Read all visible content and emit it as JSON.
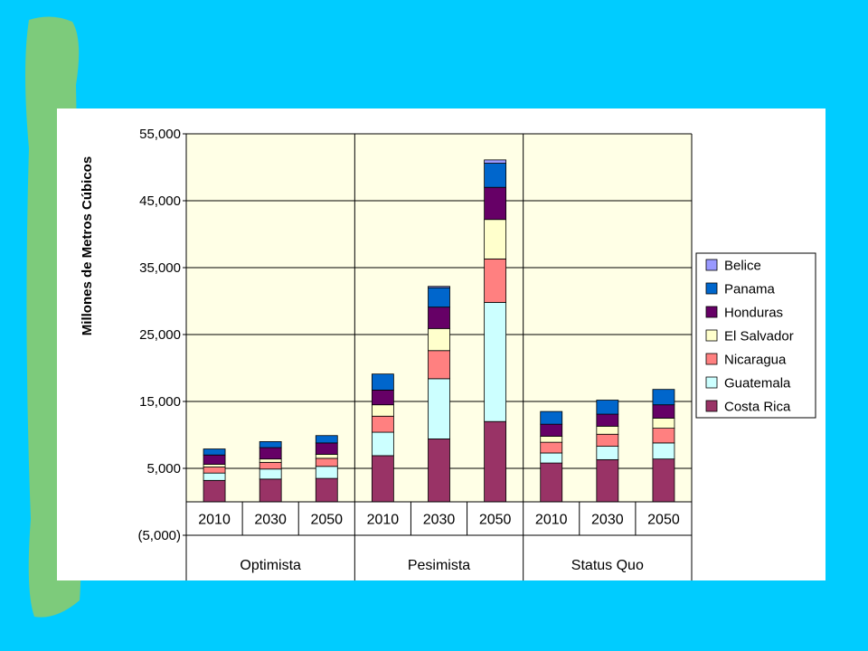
{
  "colors": {
    "background": "#00CCFF",
    "stripe": "#7DCB7B",
    "plot_area": "#FFFFE6"
  },
  "chart_data": {
    "type": "bar",
    "stacked": true,
    "title": "",
    "ylabel": "Millones de Metros Cúbicos",
    "ylim": [
      -5000,
      55000
    ],
    "y_ticks": [
      -5000,
      5000,
      15000,
      25000,
      35000,
      45000,
      55000
    ],
    "y_tick_labels": [
      "(5,000)",
      "5,000",
      "15,000",
      "25,000",
      "35,000",
      "45,000",
      "55,000"
    ],
    "groups": [
      "Optimista",
      "Pesimista",
      "Status Quo"
    ],
    "categories": [
      "2010",
      "2030",
      "2050",
      "2010",
      "2030",
      "2050",
      "2010",
      "2030",
      "2050"
    ],
    "legend_position": "right",
    "series": [
      {
        "name": "Costa Rica",
        "color": "#993366",
        "values": [
          3200,
          3400,
          3500,
          6900,
          9400,
          12000,
          5800,
          6300,
          6400
        ]
      },
      {
        "name": "Guatemala",
        "color": "#CCFFFF",
        "values": [
          1100,
          1500,
          1800,
          3500,
          9000,
          17800,
          1500,
          2000,
          2400
        ]
      },
      {
        "name": "Nicaragua",
        "color": "#FF8080",
        "values": [
          900,
          1000,
          1200,
          2400,
          4200,
          6500,
          1600,
          1800,
          2200
        ]
      },
      {
        "name": "El Salvador",
        "color": "#FFFFCC",
        "values": [
          400,
          500,
          600,
          1700,
          3300,
          5900,
          900,
          1200,
          1500
        ]
      },
      {
        "name": "Honduras",
        "color": "#660066",
        "values": [
          1400,
          1700,
          1700,
          2200,
          3200,
          4800,
          1800,
          1800,
          2000
        ]
      },
      {
        "name": "Panama",
        "color": "#0066CC",
        "values": [
          900,
          900,
          1100,
          2400,
          2900,
          3600,
          1900,
          2100,
          2300
        ]
      },
      {
        "name": "Belice",
        "color": "#9999FF",
        "values": [
          0,
          0,
          0,
          0,
          200,
          500,
          0,
          0,
          0
        ]
      }
    ]
  }
}
